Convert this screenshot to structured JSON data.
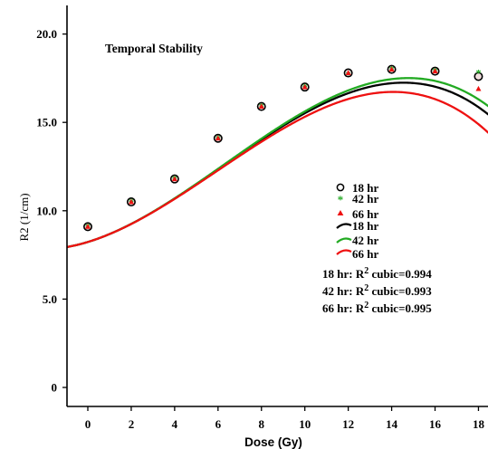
{
  "chart_data": {
    "type": "scatter",
    "title": "Temporal Stability",
    "xlabel": "Dose (Gy)",
    "ylabel": "R2 (1/cm)",
    "xlim": [
      -1,
      18.6
    ],
    "ylim": [
      -1,
      20.8
    ],
    "x_ticks": [
      "0",
      "2",
      "4",
      "6",
      "8",
      "10",
      "12",
      "14",
      "16",
      "18"
    ],
    "y_ticks": [
      "0",
      "5.0",
      "10.0",
      "15.0",
      "20.0"
    ],
    "grid": false,
    "legend_position": "center-right",
    "x": [
      0,
      2,
      4,
      6,
      8,
      10,
      12,
      14,
      16,
      18
    ],
    "series": [
      {
        "name": "18 hr",
        "marker": "open-circle",
        "color": "#000000",
        "values": [
          9.1,
          10.5,
          11.8,
          14.1,
          15.9,
          17.0,
          17.8,
          18.0,
          17.9,
          17.6
        ]
      },
      {
        "name": "42 hr",
        "marker": "star",
        "color": "#22aa22",
        "values": [
          9.1,
          10.5,
          11.8,
          14.1,
          15.9,
          17.0,
          17.7,
          18.0,
          17.9,
          17.8
        ]
      },
      {
        "name": "66 hr",
        "marker": "triangle",
        "color": "#ee1111",
        "values": [
          9.1,
          10.5,
          11.8,
          14.1,
          15.9,
          17.0,
          17.8,
          18.0,
          17.9,
          16.9
        ]
      }
    ],
    "fits": [
      {
        "name": "18 hr",
        "color": "#000000",
        "type": "cubic",
        "coefficients": [
          8.232,
          0.3747,
          0.07625,
          -0.004084
        ]
      },
      {
        "name": "42 hr",
        "color": "#22aa22",
        "type": "cubic",
        "coefficients": [
          8.232,
          0.3747,
          0.07682,
          -0.00404
        ]
      },
      {
        "name": "66 hr",
        "color": "#ee1111",
        "type": "cubic",
        "coefficients": [
          8.232,
          0.3747,
          0.07539,
          -0.004202
        ]
      }
    ],
    "annotations": [
      {
        "prefix": "18 hr: R",
        "sup": "2",
        "suffix": " cubic=0.994"
      },
      {
        "prefix": "42 hr: R",
        "sup": "2",
        "suffix": " cubic=0.993"
      },
      {
        "prefix": "66 hr: R",
        "sup": "2",
        "suffix": " cubic=0.995"
      }
    ]
  }
}
